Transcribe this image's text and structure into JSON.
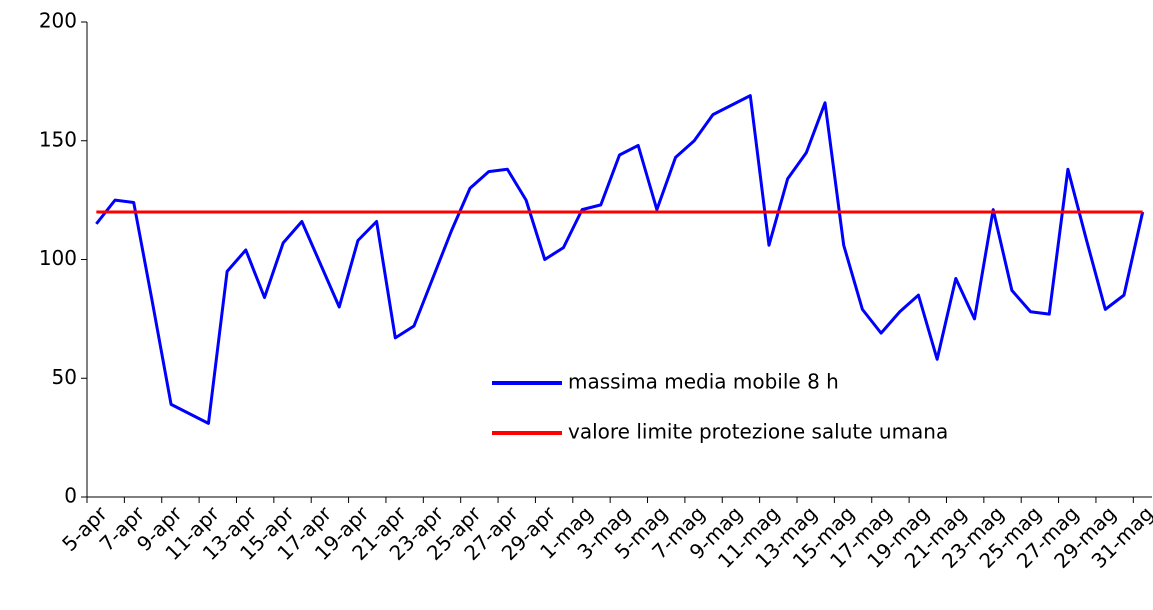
{
  "chart_data": {
    "type": "line",
    "categories": [
      "5-apr",
      null,
      "7-apr",
      null,
      "9-apr",
      null,
      "11-apr",
      null,
      "13-apr",
      null,
      "15-apr",
      null,
      "17-apr",
      null,
      "19-apr",
      null,
      "21-apr",
      null,
      "23-apr",
      null,
      "25-apr",
      null,
      "27-apr",
      null,
      "29-apr",
      null,
      "1-mag",
      null,
      "3-mag",
      null,
      "5-mag",
      null,
      "7-mag",
      null,
      "9-mag",
      null,
      "11-mag",
      null,
      "13-mag",
      null,
      "15-mag",
      null,
      "17-mag",
      null,
      "19-mag",
      null,
      "21-mag",
      null,
      "23-mag",
      null,
      "25-mag",
      null,
      "27-mag",
      null,
      "29-mag",
      null,
      "31-mag"
    ],
    "series": [
      {
        "name": "massima media mobile 8 h",
        "color": "#0000ff",
        "values": [
          115,
          125,
          124,
          82,
          39,
          35,
          31,
          95,
          104,
          84,
          107,
          116,
          98,
          80,
          108,
          116,
          67,
          72,
          92,
          112,
          130,
          137,
          138,
          125,
          100,
          105,
          121,
          123,
          144,
          148,
          121,
          143,
          150,
          161,
          165,
          169,
          106,
          134,
          145,
          166,
          106,
          79,
          69,
          78,
          85,
          58,
          92,
          75,
          121,
          87,
          78,
          77,
          138,
          108,
          79,
          85,
          120
        ]
      },
      {
        "name": "valore limite protezione salute umana",
        "color": "#ff0000",
        "values": [
          120,
          120,
          120,
          120,
          120,
          120,
          120,
          120,
          120,
          120,
          120,
          120,
          120,
          120,
          120,
          120,
          120,
          120,
          120,
          120,
          120,
          120,
          120,
          120,
          120,
          120,
          120,
          120,
          120,
          120,
          120,
          120,
          120,
          120,
          120,
          120,
          120,
          120,
          120,
          120,
          120,
          120,
          120,
          120,
          120,
          120,
          120,
          120,
          120,
          120,
          120,
          120,
          120,
          120,
          120,
          120,
          120
        ]
      }
    ],
    "ylim": [
      0,
      200
    ],
    "yticks": [
      0,
      50,
      100,
      150,
      200
    ],
    "grid": false
  }
}
